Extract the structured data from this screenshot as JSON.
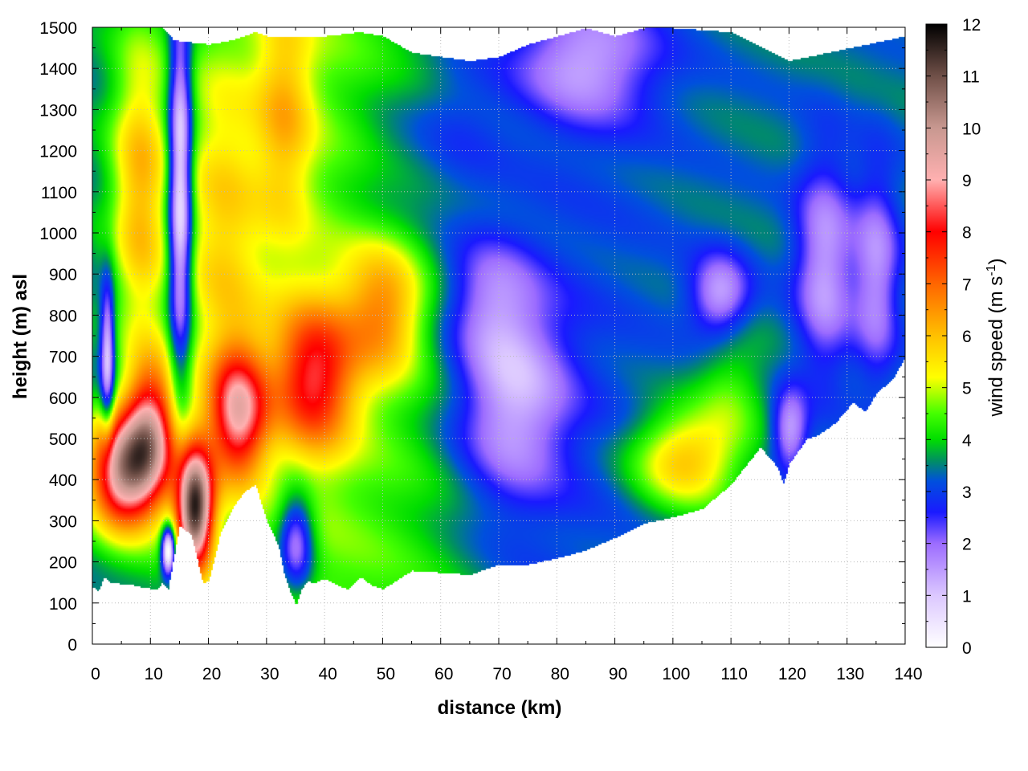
{
  "chart_data": {
    "type": "heatmap",
    "title": "",
    "xlabel": "distance (km)",
    "ylabel": "height (m) asl",
    "colorbar_label_main": "wind speed (m s",
    "colorbar_label_sup": "-1",
    "colorbar_label_end": ")",
    "xlim": [
      0,
      140
    ],
    "ylim": [
      0,
      1500
    ],
    "zlim": [
      0,
      12
    ],
    "x_ticks": [
      "0",
      "10",
      "20",
      "30",
      "40",
      "50",
      "60",
      "70",
      "80",
      "90",
      "100",
      "110",
      "120",
      "130",
      "140"
    ],
    "y_ticks": [
      "0",
      "100",
      "200",
      "300",
      "400",
      "500",
      "600",
      "700",
      "800",
      "900",
      "1000",
      "1100",
      "1200",
      "1300",
      "1400",
      "1500"
    ],
    "z_ticks": [
      "0",
      "1",
      "2",
      "3",
      "4",
      "5",
      "6",
      "7",
      "8",
      "9",
      "10",
      "11",
      "12"
    ],
    "grid": true,
    "colormap": [
      {
        "v": 0,
        "color": "#ffffff"
      },
      {
        "v": 1,
        "color": "#dcc8ff"
      },
      {
        "v": 2,
        "color": "#9c6cff"
      },
      {
        "v": 2.6,
        "color": "#1a1aff"
      },
      {
        "v": 3.2,
        "color": "#0050dd"
      },
      {
        "v": 3.6,
        "color": "#009060"
      },
      {
        "v": 4,
        "color": "#00dd00"
      },
      {
        "v": 4.5,
        "color": "#44ff00"
      },
      {
        "v": 5.2,
        "color": "#ffff00"
      },
      {
        "v": 6,
        "color": "#ffc000"
      },
      {
        "v": 7,
        "color": "#ff6600"
      },
      {
        "v": 8,
        "color": "#ff0000"
      },
      {
        "v": 9,
        "color": "#ffb0b0"
      },
      {
        "v": 10,
        "color": "#c89890"
      },
      {
        "v": 11,
        "color": "#705048"
      },
      {
        "v": 12,
        "color": "#000000"
      }
    ],
    "terrain": {
      "x": [
        0,
        1,
        2,
        3,
        5,
        7,
        9,
        11,
        12,
        13,
        15,
        17,
        19,
        20,
        22,
        24,
        26,
        28,
        30,
        32,
        33,
        34,
        35,
        36,
        37,
        38,
        40,
        42,
        44,
        46,
        48,
        50,
        55,
        60,
        65,
        70,
        75,
        80,
        85,
        90,
        95,
        100,
        105,
        110,
        115,
        118,
        119,
        120,
        123,
        125,
        128,
        131,
        133,
        135,
        138,
        140
      ],
      "y": [
        140,
        130,
        165,
        150,
        148,
        145,
        138,
        135,
        150,
        135,
        290,
        265,
        148,
        155,
        270,
        330,
        370,
        390,
        300,
        240,
        170,
        130,
        95,
        135,
        155,
        150,
        160,
        145,
        135,
        165,
        145,
        135,
        180,
        175,
        170,
        195,
        195,
        210,
        230,
        260,
        295,
        310,
        330,
        390,
        480,
        430,
        390,
        440,
        500,
        510,
        540,
        590,
        565,
        610,
        650,
        700
      ]
    },
    "data_top": {
      "x": [
        0,
        12,
        14,
        20,
        24,
        28,
        30,
        40,
        46,
        50,
        55,
        60,
        65,
        70,
        75,
        80,
        85,
        90,
        95,
        100,
        110,
        120,
        130,
        140
      ],
      "y": [
        1500,
        1500,
        1470,
        1460,
        1470,
        1490,
        1480,
        1480,
        1490,
        1480,
        1440,
        1430,
        1420,
        1430,
        1460,
        1480,
        1500,
        1480,
        1500,
        1500,
        1490,
        1420,
        1450,
        1480
      ]
    },
    "features": [
      {
        "x": 17.5,
        "y": 330,
        "sx": 3.2,
        "sy": 150,
        "amp": 7.5
      },
      {
        "x": 5,
        "y": 420,
        "sx": 6,
        "sy": 140,
        "amp": 6.0
      },
      {
        "x": 10,
        "y": 520,
        "sx": 4.5,
        "sy": 170,
        "amp": 4.5
      },
      {
        "x": 25,
        "y": 560,
        "sx": 5,
        "sy": 160,
        "amp": 4.5
      },
      {
        "x": 38,
        "y": 650,
        "sx": 7,
        "sy": 180,
        "amp": 3.8
      },
      {
        "x": 8,
        "y": 1100,
        "sx": 5,
        "sy": 380,
        "amp": 2.4
      },
      {
        "x": 22,
        "y": 1000,
        "sx": 7,
        "sy": 450,
        "amp": 1.6
      },
      {
        "x": 50,
        "y": 820,
        "sx": 7,
        "sy": 170,
        "amp": 2.6
      },
      {
        "x": 33,
        "y": 1300,
        "sx": 5,
        "sy": 300,
        "amp": 1.6
      },
      {
        "x": 15,
        "y": 1100,
        "sx": 2,
        "sy": 450,
        "amp": -4.0
      },
      {
        "x": 2.5,
        "y": 700,
        "sx": 1.2,
        "sy": 180,
        "amp": -3.0
      },
      {
        "x": 13,
        "y": 230,
        "sx": 1.2,
        "sy": 60,
        "amp": -5.0
      },
      {
        "x": 35,
        "y": 250,
        "sx": 3,
        "sy": 120,
        "amp": -2.6
      },
      {
        "x": 50,
        "y": 1100,
        "sx": 8,
        "sy": 350,
        "amp": -0.6
      },
      {
        "x": 72,
        "y": 600,
        "sx": 10,
        "sy": 250,
        "amp": -2.2
      },
      {
        "x": 68,
        "y": 850,
        "sx": 8,
        "sy": 150,
        "amp": -1.3
      },
      {
        "x": 62,
        "y": 1250,
        "sx": 9,
        "sy": 250,
        "amp": -0.8
      },
      {
        "x": 85,
        "y": 1420,
        "sx": 12,
        "sy": 150,
        "amp": -1.8
      },
      {
        "x": 102,
        "y": 450,
        "sx": 9,
        "sy": 120,
        "amp": 2.6
      },
      {
        "x": 110,
        "y": 620,
        "sx": 6,
        "sy": 150,
        "amp": 1.0
      },
      {
        "x": 108,
        "y": 850,
        "sx": 5,
        "sy": 100,
        "amp": -2.0
      },
      {
        "x": 126,
        "y": 920,
        "sx": 5,
        "sy": 260,
        "amp": -2.0
      },
      {
        "x": 135,
        "y": 900,
        "sx": 4,
        "sy": 250,
        "amp": -1.8
      },
      {
        "x": 120,
        "y": 520,
        "sx": 3,
        "sy": 100,
        "amp": -2.0
      }
    ]
  }
}
